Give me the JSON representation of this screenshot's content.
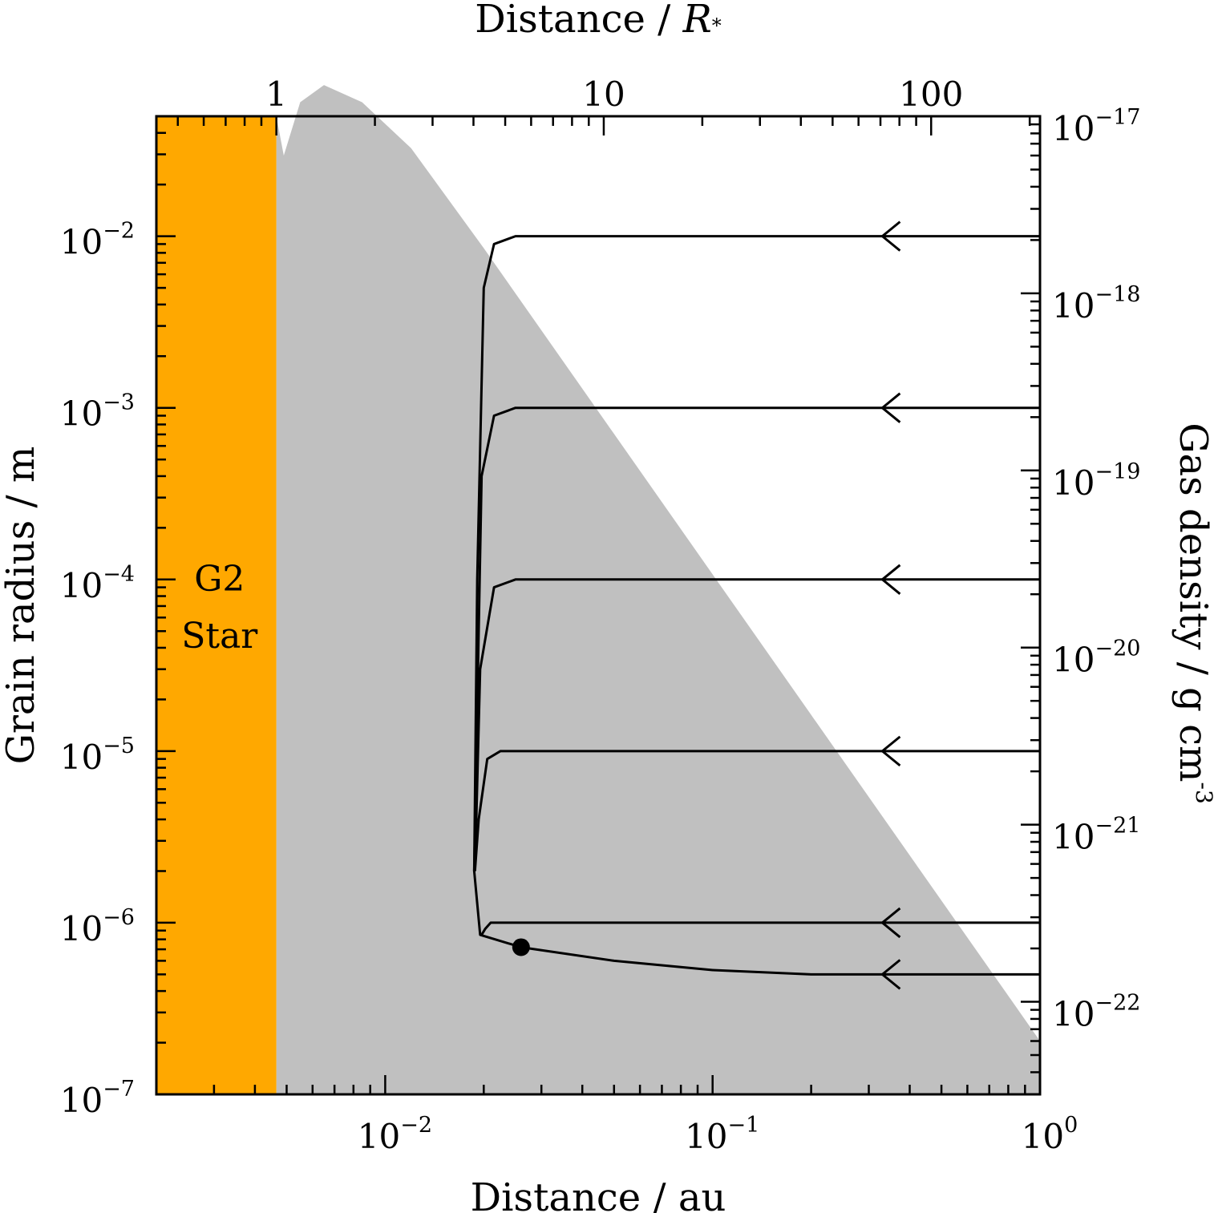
{
  "chart_data": {
    "type": "line",
    "axes": {
      "bottom": {
        "label": "Distance / au",
        "scale": "log",
        "range": [
          0.002,
          1.0
        ],
        "tick_labels": [
          "10^-2",
          "10^-1",
          "10^0"
        ]
      },
      "top": {
        "label_main": "Distance / ",
        "label_symbol": "R",
        "label_subscript": "*",
        "scale": "log",
        "range": [
          0.43,
          215
        ],
        "tick_labels": [
          "1",
          "10",
          "100"
        ]
      },
      "left": {
        "label": "Grain radius / m",
        "scale": "log",
        "range": [
          1e-07,
          0.05
        ],
        "tick_labels": [
          "10^-2",
          "10^-3",
          "10^-4",
          "10^-5",
          "10^-6",
          "10^-7"
        ]
      },
      "right": {
        "label_main": "Gas density / g cm",
        "label_exponent": "-3",
        "scale": "log",
        "range": [
          3e-23,
          1e-17
        ],
        "tick_labels": [
          "10^-17",
          "10^-18",
          "10^-19",
          "10^-20",
          "10^-21",
          "10^-22"
        ]
      }
    },
    "star_region": {
      "label_line1": "G2",
      "label_line2": "Star",
      "x_range_au": [
        0.002,
        0.00465
      ],
      "color": "#ffa800"
    },
    "gas_density": {
      "color": "#c0c0c0",
      "points": [
        {
          "x": 0.00465,
          "y": 1e-17
        },
        {
          "x": 0.0049,
          "y": 6e-18
        },
        {
          "x": 0.0055,
          "y": 1.2e-17
        },
        {
          "x": 0.0065,
          "y": 1.5e-17
        },
        {
          "x": 0.0085,
          "y": 1.2e-17
        },
        {
          "x": 0.012,
          "y": 6.6e-18
        },
        {
          "x": 0.02,
          "y": 1.8e-18
        },
        {
          "x": 0.022,
          "y": 1.4e-18
        },
        {
          "x": 1.0,
          "y": 6e-23
        }
      ]
    },
    "trajectories": [
      {
        "start_radius": 0.01,
        "direction": "inward",
        "points": [
          {
            "x": 1.0,
            "y": 0.01
          },
          {
            "x": 0.025,
            "y": 0.01
          },
          {
            "x": 0.0215,
            "y": 0.009
          },
          {
            "x": 0.02,
            "y": 0.005
          },
          {
            "x": 0.0191,
            "y": 0.0001
          },
          {
            "x": 0.0187,
            "y": 2e-06
          },
          {
            "x": 0.0195,
            "y": 8.5e-07
          },
          {
            "x": 0.026,
            "y": 7.2e-07
          }
        ]
      },
      {
        "start_radius": 0.001,
        "direction": "inward",
        "points": [
          {
            "x": 1.0,
            "y": 0.001
          },
          {
            "x": 0.025,
            "y": 0.001
          },
          {
            "x": 0.0215,
            "y": 0.0009
          },
          {
            "x": 0.0197,
            "y": 0.0004
          },
          {
            "x": 0.019,
            "y": 1e-05
          },
          {
            "x": 0.0187,
            "y": 2e-06
          }
        ]
      },
      {
        "start_radius": 0.0001,
        "direction": "inward",
        "points": [
          {
            "x": 1.0,
            "y": 0.0001
          },
          {
            "x": 0.025,
            "y": 0.0001
          },
          {
            "x": 0.0215,
            "y": 9e-05
          },
          {
            "x": 0.0195,
            "y": 3e-05
          },
          {
            "x": 0.0188,
            "y": 2e-06
          }
        ]
      },
      {
        "start_radius": 1e-05,
        "direction": "inward",
        "points": [
          {
            "x": 1.0,
            "y": 1e-05
          },
          {
            "x": 0.0225,
            "y": 1e-05
          },
          {
            "x": 0.0205,
            "y": 9e-06
          },
          {
            "x": 0.0193,
            "y": 4e-06
          },
          {
            "x": 0.0188,
            "y": 2e-06
          }
        ]
      },
      {
        "start_radius": 1e-06,
        "direction": "inward",
        "points": [
          {
            "x": 1.0,
            "y": 1e-06
          },
          {
            "x": 0.021,
            "y": 1e-06
          },
          {
            "x": 0.0202,
            "y": 9.2e-07
          },
          {
            "x": 0.0197,
            "y": 8.5e-07
          }
        ]
      },
      {
        "start_radius": 5e-07,
        "direction": "inward",
        "points": [
          {
            "x": 1.0,
            "y": 5e-07
          },
          {
            "x": 0.2,
            "y": 5e-07
          },
          {
            "x": 0.1,
            "y": 5.3e-07
          },
          {
            "x": 0.05,
            "y": 6e-07
          },
          {
            "x": 0.026,
            "y": 7.2e-07
          }
        ]
      }
    ],
    "end_point": {
      "x": 0.026,
      "y": 7.2e-07
    },
    "arrow_position_au": 0.33,
    "grid": false,
    "legend": "none"
  }
}
